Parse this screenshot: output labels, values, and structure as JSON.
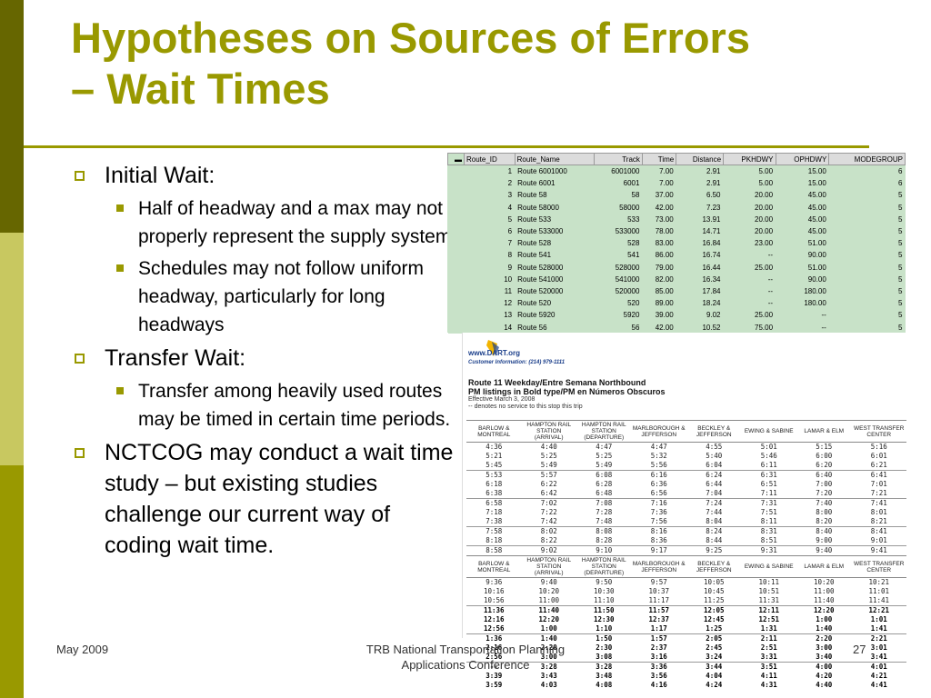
{
  "slide": {
    "title_line1": "Hypotheses on Sources of Errors",
    "title_line2": "– Wait Times",
    "bullets": [
      {
        "text": "Initial Wait:",
        "subs": [
          "Half of headway and a max may not properly represent the supply system",
          "Schedules may not follow uniform headway, particularly for long headways"
        ]
      },
      {
        "text": "Transfer Wait:",
        "subs": [
          "Transfer among heavily used routes may be timed in certain time periods."
        ]
      },
      {
        "text": "NCTCOG may conduct a wait time study – but existing studies challenge our current way of coding wait time.",
        "subs": []
      }
    ],
    "footer": {
      "date": "May 2009",
      "center_line1": "TRB National Transportation Planning",
      "center_line2": "Applications Conference",
      "page": "27"
    }
  },
  "route_table": {
    "headers": [
      "Route_ID",
      "Route_Name",
      "Track",
      "Time",
      "Distance",
      "PKHDWY",
      "OPHDWY",
      "MODEGROUP"
    ],
    "rows": [
      [
        "1",
        "Route 6001000",
        "6001000",
        "7.00",
        "2.91",
        "5.00",
        "15.00",
        "6"
      ],
      [
        "2",
        "Route 6001",
        "6001",
        "7.00",
        "2.91",
        "5.00",
        "15.00",
        "6"
      ],
      [
        "3",
        "Route 58",
        "58",
        "37.00",
        "6.50",
        "20.00",
        "45.00",
        "5"
      ],
      [
        "4",
        "Route 58000",
        "58000",
        "42.00",
        "7.23",
        "20.00",
        "45.00",
        "5"
      ],
      [
        "5",
        "Route 533",
        "533",
        "73.00",
        "13.91",
        "20.00",
        "45.00",
        "5"
      ],
      [
        "6",
        "Route 533000",
        "533000",
        "78.00",
        "14.71",
        "20.00",
        "45.00",
        "5"
      ],
      [
        "7",
        "Route 528",
        "528",
        "83.00",
        "16.84",
        "23.00",
        "51.00",
        "5"
      ],
      [
        "8",
        "Route 541",
        "541",
        "86.00",
        "16.74",
        "--",
        "90.00",
        "5"
      ],
      [
        "9",
        "Route 528000",
        "528000",
        "79.00",
        "16.44",
        "25.00",
        "51.00",
        "5"
      ],
      [
        "10",
        "Route 541000",
        "541000",
        "82.00",
        "16.34",
        "--",
        "90.00",
        "5"
      ],
      [
        "11",
        "Route 520000",
        "520000",
        "85.00",
        "17.84",
        "--",
        "180.00",
        "5"
      ],
      [
        "12",
        "Route 520",
        "520",
        "89.00",
        "18.24",
        "--",
        "180.00",
        "5"
      ],
      [
        "13",
        "Route 5920",
        "5920",
        "39.00",
        "9.02",
        "25.00",
        "--",
        "5"
      ],
      [
        "14",
        "Route 56",
        "56",
        "42.00",
        "10.52",
        "75.00",
        "--",
        "5"
      ]
    ]
  },
  "schedule": {
    "logo_text": "www.DART.org",
    "customer_info": "Customer Information: (214) 979-1111",
    "title1": "Route 11 Weekday/Entre Semana Northbound",
    "title2": "PM listings in Bold type/PM en Números Obscuros",
    "effective": "Effective March 3, 2008",
    "note": "-- denotes no service to this stop this trip",
    "headers": [
      "BARLOW & MONTREAL",
      "HAMPTON RAIL STATION (ARRIVAL)",
      "HAMPTON RAIL STATION (DEPARTURE)",
      "MARLBOROUGH & JEFFERSON",
      "BECKLEY & JEFFERSON",
      "EWING & SABINE",
      "LAMAR & ELM",
      "WEST TRANSFER CENTER"
    ],
    "block1": [
      [
        "4:36",
        "4:40",
        "4:47",
        "4:47",
        "4:55",
        "5:01",
        "5:15",
        "5:16"
      ],
      [
        "5:21",
        "5:25",
        "5:25",
        "5:32",
        "5:40",
        "5:46",
        "6:00",
        "6:01"
      ],
      [
        "5:45",
        "5:49",
        "5:49",
        "5:56",
        "6:04",
        "6:11",
        "6:20",
        "6:21"
      ],
      [
        "5:53",
        "5:57",
        "6:08",
        "6:16",
        "6:24",
        "6:31",
        "6:40",
        "6:41"
      ],
      [
        "6:18",
        "6:22",
        "6:28",
        "6:36",
        "6:44",
        "6:51",
        "7:00",
        "7:01"
      ],
      [
        "6:38",
        "6:42",
        "6:48",
        "6:56",
        "7:04",
        "7:11",
        "7:20",
        "7:21"
      ],
      [
        "6:58",
        "7:02",
        "7:08",
        "7:16",
        "7:24",
        "7:31",
        "7:40",
        "7:41"
      ],
      [
        "7:18",
        "7:22",
        "7:28",
        "7:36",
        "7:44",
        "7:51",
        "8:00",
        "8:01"
      ],
      [
        "7:38",
        "7:42",
        "7:48",
        "7:56",
        "8:04",
        "8:11",
        "8:20",
        "8:21"
      ],
      [
        "7:58",
        "8:02",
        "8:08",
        "8:16",
        "8:24",
        "8:31",
        "8:40",
        "8:41"
      ],
      [
        "8:18",
        "8:22",
        "8:28",
        "8:36",
        "8:44",
        "8:51",
        "9:00",
        "9:01"
      ],
      [
        "8:58",
        "9:02",
        "9:10",
        "9:17",
        "9:25",
        "9:31",
        "9:40",
        "9:41"
      ]
    ],
    "block2": [
      [
        "9:36",
        "9:40",
        "9:50",
        "9:57",
        "10:05",
        "10:11",
        "10:20",
        "10:21"
      ],
      [
        "10:16",
        "10:20",
        "10:30",
        "10:37",
        "10:45",
        "10:51",
        "11:00",
        "11:01"
      ],
      [
        "10:56",
        "11:00",
        "11:10",
        "11:17",
        "11:25",
        "11:31",
        "11:40",
        "11:41"
      ],
      [
        "11:36",
        "11:40",
        "11:50",
        "11:57",
        "12:05",
        "12:11",
        "12:20",
        "12:21"
      ],
      [
        "12:16",
        "12:20",
        "12:30",
        "12:37",
        "12:45",
        "12:51",
        "1:00",
        "1:01"
      ],
      [
        "12:56",
        "1:00",
        "1:10",
        "1:17",
        "1:25",
        "1:31",
        "1:40",
        "1:41"
      ],
      [
        "1:36",
        "1:40",
        "1:50",
        "1:57",
        "2:05",
        "2:11",
        "2:20",
        "2:21"
      ],
      [
        "2:16",
        "2:20",
        "2:30",
        "2:37",
        "2:45",
        "2:51",
        "3:00",
        "3:01"
      ],
      [
        "2:56",
        "3:00",
        "3:08",
        "3:16",
        "3:24",
        "3:31",
        "3:40",
        "3:41"
      ],
      [
        "--",
        "3:28",
        "3:28",
        "3:36",
        "3:44",
        "3:51",
        "4:00",
        "4:01"
      ],
      [
        "3:39",
        "3:43",
        "3:48",
        "3:56",
        "4:04",
        "4:11",
        "4:20",
        "4:21"
      ],
      [
        "3:59",
        "4:03",
        "4:08",
        "4:16",
        "4:24",
        "4:31",
        "4:40",
        "4:41"
      ]
    ],
    "block2_bold_start": 3,
    "block1_separators": [
      3,
      6,
      9,
      11
    ],
    "block2_separators": [
      3,
      6,
      9
    ]
  }
}
